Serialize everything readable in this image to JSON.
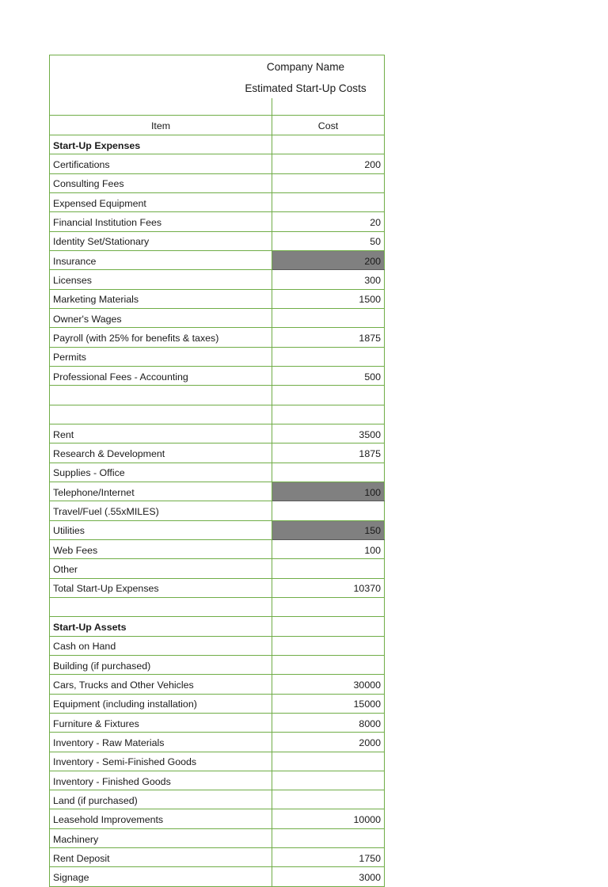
{
  "title": {
    "company": "Company Name",
    "subtitle": "Estimated Start-Up Costs"
  },
  "columns": {
    "item": "Item",
    "cost": "Cost"
  },
  "colors": {
    "grid_green": "#70AD47",
    "highlight_gray": "#808080",
    "text": "#1a1a1a"
  },
  "rows": [
    {
      "item": "Start-Up Expenses",
      "cost": "",
      "bold": true
    },
    {
      "item": "Certifications",
      "cost": "200"
    },
    {
      "item": "Consulting Fees",
      "cost": ""
    },
    {
      "item": "Expensed Equipment",
      "cost": ""
    },
    {
      "item": "Financial Institution Fees",
      "cost": "20"
    },
    {
      "item": "Identity Set/Stationary",
      "cost": "50"
    },
    {
      "item": "Insurance",
      "cost": "200",
      "highlight": true
    },
    {
      "item": "Licenses",
      "cost": "300"
    },
    {
      "item": "Marketing Materials",
      "cost": "1500"
    },
    {
      "item": "Owner's Wages",
      "cost": ""
    },
    {
      "item": "Payroll (with 25% for benefits & taxes)",
      "cost": "1875"
    },
    {
      "item": "Permits",
      "cost": ""
    },
    {
      "item": "Professional Fees - Accounting",
      "cost": "500"
    },
    {
      "item": "",
      "cost": ""
    },
    {
      "item": "",
      "cost": ""
    },
    {
      "item": "Rent",
      "cost": "3500"
    },
    {
      "item": "Research & Development",
      "cost": "1875"
    },
    {
      "item": "Supplies - Office",
      "cost": ""
    },
    {
      "item": "Telephone/Internet",
      "cost": "100",
      "highlight": true
    },
    {
      "item": "Travel/Fuel (.55xMILES)",
      "cost": ""
    },
    {
      "item": "Utilities",
      "cost": "150",
      "highlight": true
    },
    {
      "item": "Web Fees",
      "cost": "100"
    },
    {
      "item": "Other",
      "cost": ""
    },
    {
      "item": "Total Start-Up Expenses",
      "cost": "10370"
    },
    {
      "item": "",
      "cost": ""
    },
    {
      "item": "Start-Up Assets",
      "cost": "",
      "bold": true
    },
    {
      "item": "Cash on Hand",
      "cost": ""
    },
    {
      "item": "Building (if purchased)",
      "cost": ""
    },
    {
      "item": "Cars, Trucks and Other Vehicles",
      "cost": "30000"
    },
    {
      "item": "Equipment (including installation)",
      "cost": "15000"
    },
    {
      "item": "Furniture & Fixtures",
      "cost": "8000"
    },
    {
      "item": "Inventory - Raw Materials",
      "cost": "2000"
    },
    {
      "item": "Inventory - Semi-Finished Goods",
      "cost": ""
    },
    {
      "item": "Inventory - Finished Goods",
      "cost": ""
    },
    {
      "item": "Land (if purchased)",
      "cost": ""
    },
    {
      "item": "Leasehold Improvements",
      "cost": "10000"
    },
    {
      "item": "Machinery",
      "cost": ""
    },
    {
      "item": "Rent Deposit",
      "cost": "1750"
    },
    {
      "item": "Signage",
      "cost": "3000"
    }
  ]
}
